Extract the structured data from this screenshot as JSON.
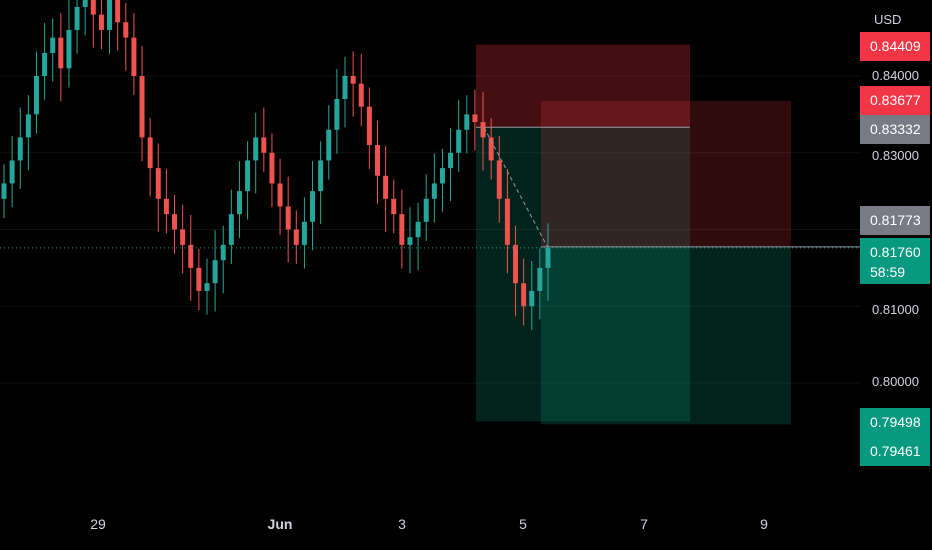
{
  "axis": {
    "currency": "USD",
    "ticks": [
      "0.84000",
      "0.83000",
      "0.81000",
      "0.80000"
    ]
  },
  "price_badges": {
    "top_red": "0.84409",
    "red": "0.83677",
    "gray_entry": "0.83332",
    "gray_current": "0.81773",
    "green_last": "0.81760",
    "countdown": "58:59",
    "green_target1": "0.79498",
    "green_target2": "0.79461"
  },
  "colors": {
    "up": "#26a69a",
    "down": "#ef5350",
    "red_badge": "#f23645",
    "green_badge": "#089981",
    "gray_badge": "#787b86"
  },
  "x_axis": {
    "labels": [
      "29",
      "Jun",
      "3",
      "5",
      "7",
      "9"
    ]
  },
  "chart_data": {
    "type": "candlestick",
    "price_range": [
      0.785,
      0.8515
    ],
    "x_labels": [
      "29",
      "Jun",
      "3",
      "5",
      "7",
      "9"
    ],
    "candles_close_approx": [
      0.826,
      0.829,
      0.832,
      0.835,
      0.84,
      0.843,
      0.845,
      0.841,
      0.846,
      0.849,
      0.851,
      0.848,
      0.846,
      0.85,
      0.847,
      0.845,
      0.84,
      0.832,
      0.828,
      0.824,
      0.822,
      0.82,
      0.818,
      0.815,
      0.812,
      0.813,
      0.816,
      0.818,
      0.822,
      0.825,
      0.829,
      0.832,
      0.83,
      0.826,
      0.823,
      0.82,
      0.818,
      0.821,
      0.825,
      0.829,
      0.833,
      0.837,
      0.84,
      0.839,
      0.836,
      0.831,
      0.827,
      0.824,
      0.822,
      0.818,
      0.819,
      0.821,
      0.824,
      0.826,
      0.828,
      0.83,
      0.833,
      0.835,
      0.834,
      0.832,
      0.829,
      0.824,
      0.818,
      0.813,
      0.81,
      0.812,
      0.815,
      0.8176
    ],
    "long_position": {
      "entry": 0.81773,
      "stop": 0.83677,
      "target": 0.79461
    },
    "short_position": {
      "entry": 0.83332,
      "stop": 0.84409,
      "target": 0.79498
    },
    "last_price": 0.8176
  }
}
